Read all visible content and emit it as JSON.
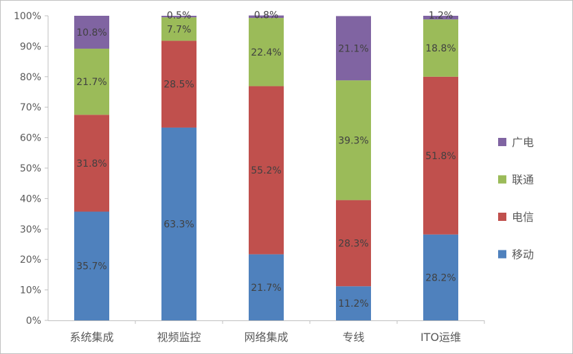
{
  "chart_data": {
    "type": "bar",
    "stacked": true,
    "percent": true,
    "categories": [
      "系统集成",
      "视频监控",
      "网络集成",
      "专线",
      "ITO运维"
    ],
    "series": [
      {
        "name": "移动",
        "color": "#4f81bd",
        "values": [
          35.7,
          63.3,
          21.7,
          11.2,
          28.2
        ]
      },
      {
        "name": "电信",
        "color": "#c0504d",
        "values": [
          31.8,
          28.5,
          55.2,
          28.3,
          51.8
        ]
      },
      {
        "name": "联通",
        "color": "#9bbb59",
        "values": [
          21.7,
          7.7,
          22.4,
          39.3,
          18.8
        ]
      },
      {
        "name": "广电",
        "color": "#8064a2",
        "values": [
          10.8,
          0.5,
          0.8,
          21.1,
          1.2
        ]
      }
    ],
    "ylim": [
      0,
      100
    ],
    "yticks": [
      "0%",
      "10%",
      "20%",
      "30%",
      "40%",
      "50%",
      "60%",
      "70%",
      "80%",
      "90%",
      "100%"
    ],
    "legend_order": [
      "广电",
      "联通",
      "电信",
      "移动"
    ],
    "legend_position": "right",
    "grid": false
  }
}
